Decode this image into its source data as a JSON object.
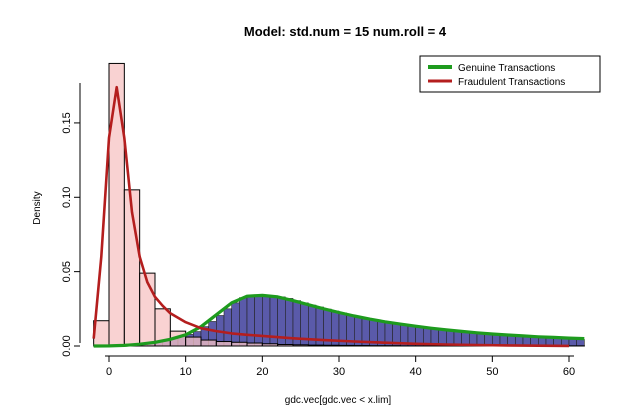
{
  "chart_data": {
    "type": "histogram-density",
    "title": "Model:  std.num = 15    num.roll = 4",
    "xlabel": "gdc.vec[gdc.vec < x.lim]",
    "ylabel": "Density",
    "xlim": [
      -3,
      63
    ],
    "ylim": [
      0,
      0.195
    ],
    "x_ticks": [
      0,
      10,
      20,
      30,
      40,
      50,
      60
    ],
    "y_ticks": [
      0.0,
      0.05,
      0.1,
      0.15
    ],
    "y_tick_labels": [
      "0.00",
      "0.05",
      "0.10",
      "0.15"
    ],
    "legend_position": "top-right",
    "colors": {
      "genuine_line": "#1e9b1e",
      "fraudulent_line": "#b41e1e",
      "genuine_fill": "#5a5aaa",
      "fraudulent_fill": "#f7c3c3"
    },
    "series": [
      {
        "name": "Genuine Transactions",
        "kind": "histogram+density",
        "bin_width": 1,
        "histogram": {
          "x_start": 0,
          "values": [
            0.0001,
            0.0002,
            0.0004,
            0.0007,
            0.0012,
            0.0018,
            0.0026,
            0.0036,
            0.0048,
            0.0062,
            0.0078,
            0.0097,
            0.013,
            0.0165,
            0.0205,
            0.025,
            0.029,
            0.0325,
            0.0335,
            0.0345,
            0.034,
            0.0335,
            0.033,
            0.032,
            0.0305,
            0.029,
            0.0275,
            0.0262,
            0.0248,
            0.0235,
            0.0222,
            0.021,
            0.0198,
            0.0187,
            0.0177,
            0.0167,
            0.0158,
            0.0149,
            0.0141,
            0.0133,
            0.0126,
            0.0119,
            0.0113,
            0.0107,
            0.0101,
            0.0096,
            0.0091,
            0.0086,
            0.0082,
            0.0078,
            0.0074,
            0.007,
            0.0067,
            0.0063,
            0.006,
            0.0058,
            0.0055,
            0.0053,
            0.0051,
            0.0049,
            0.0047,
            0.0045
          ]
        },
        "density": {
          "x": [
            -2,
            0,
            2,
            4,
            6,
            8,
            10,
            12,
            14,
            16,
            18,
            20,
            22,
            24,
            26,
            28,
            30,
            32,
            34,
            36,
            38,
            40,
            42,
            44,
            46,
            48,
            50,
            52,
            54,
            56,
            58,
            60,
            62
          ],
          "y": [
            0,
            0.0001,
            0.0004,
            0.0012,
            0.0025,
            0.0045,
            0.0075,
            0.013,
            0.021,
            0.029,
            0.0335,
            0.034,
            0.033,
            0.0305,
            0.0278,
            0.025,
            0.0225,
            0.0202,
            0.0181,
            0.0163,
            0.0147,
            0.0133,
            0.012,
            0.0108,
            0.0098,
            0.0089,
            0.0081,
            0.0074,
            0.0068,
            0.0062,
            0.0058,
            0.0053,
            0.005
          ]
        }
      },
      {
        "name": "Fraudulent Transactions",
        "kind": "histogram+density",
        "bin_width": 2,
        "histogram": {
          "x_start": -2,
          "values": [
            0.017,
            0.19,
            0.105,
            0.049,
            0.025,
            0.01,
            0.006,
            0.004,
            0.003,
            0.0025,
            0.002,
            0.0015,
            0.001,
            0.0008,
            0.0006,
            0.0005,
            0.0004,
            0.0003,
            0.0002,
            0.0002,
            0.0001,
            0.0001,
            0.0001,
            0.0001,
            0.0001,
            0.0001,
            0.0001,
            0.0001,
            0.0001,
            0.0001,
            0.0001,
            0.0001
          ]
        },
        "density": {
          "x": [
            -2,
            -1,
            0,
            1,
            2,
            3,
            4,
            5,
            6,
            7,
            8,
            10,
            12,
            14,
            16,
            18,
            20,
            24,
            28,
            32,
            36,
            40,
            44,
            48,
            52,
            56,
            60
          ],
          "y": [
            0.005,
            0.06,
            0.14,
            0.174,
            0.14,
            0.09,
            0.06,
            0.043,
            0.033,
            0.027,
            0.022,
            0.016,
            0.012,
            0.01,
            0.0085,
            0.0075,
            0.0068,
            0.0052,
            0.004,
            0.003,
            0.0022,
            0.0015,
            0.001,
            0.0007,
            0.0004,
            0.0002,
            0.0001
          ]
        }
      }
    ]
  }
}
